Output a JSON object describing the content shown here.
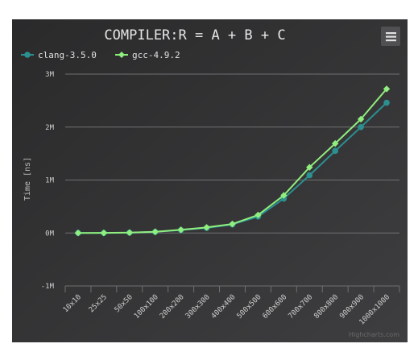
{
  "chart_data": {
    "type": "line",
    "title": "COMPILER:R = A + B + C",
    "ylabel": "Time [ns]",
    "xlabel": "",
    "categories": [
      "10x10",
      "25x25",
      "50x50",
      "100x100",
      "200x200",
      "300x300",
      "400x400",
      "500x500",
      "600x600",
      "700x700",
      "800x800",
      "900x900",
      "1000x1000"
    ],
    "y_ticks": [
      "-1M",
      "0M",
      "1M",
      "2M",
      "3M"
    ],
    "ylim": [
      -1000000,
      3000000
    ],
    "grid": true,
    "legend_position": "top-left",
    "series": [
      {
        "name": "clang-3.5.0",
        "color": "#2b908f",
        "marker": "circle",
        "values": [
          500,
          1500,
          6000,
          20000,
          55000,
          95000,
          160000,
          310000,
          650000,
          1090000,
          1550000,
          2000000,
          2460000
        ]
      },
      {
        "name": "gcc-4.9.2",
        "color": "#90ee7e",
        "marker": "diamond",
        "values": [
          600,
          1700,
          7000,
          23000,
          60000,
          105000,
          170000,
          340000,
          710000,
          1240000,
          1690000,
          2150000,
          2720000
        ]
      }
    ]
  },
  "credit": "Highcharts.com",
  "colors": {
    "background": "#2d2d2f",
    "grid": "#707073",
    "menu_button": "#505053"
  },
  "icons": {
    "menu": "hamburger-menu-icon"
  }
}
